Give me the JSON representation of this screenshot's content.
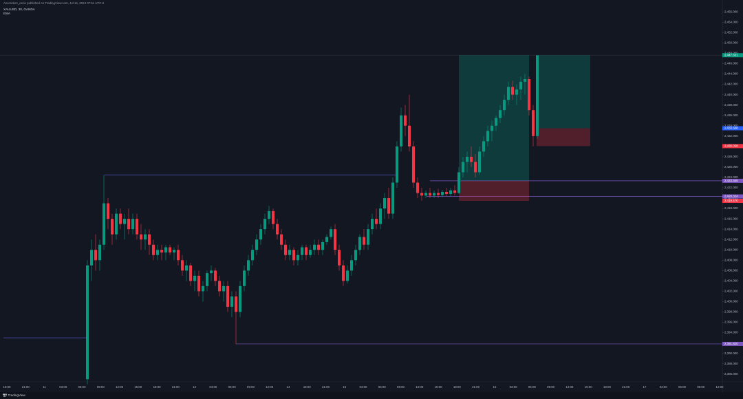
{
  "header": {
    "source": "Ascenders_eerie published on TradingView.com, Jul 16, 2024 07:51 UTC-6",
    "symbol": "XAUUSD, 30, OANDA",
    "indicator": "EMA"
  },
  "footer": {
    "brand": "TradingView"
  },
  "chart_data": {
    "type": "candlestick",
    "up_color": "#089981",
    "down_color": "#f23645",
    "ylim": [
      2384.5,
      2458.3
    ],
    "yticks": [
      {
        "value": 2386,
        "label": "2,386.000"
      },
      {
        "value": 2388,
        "label": "2,388.000"
      },
      {
        "value": 2390,
        "label": "2,390.000"
      },
      {
        "value": 2392,
        "label": "2,392.000"
      },
      {
        "value": 2394,
        "label": "2,394.000"
      },
      {
        "value": 2396,
        "label": "2,396.000"
      },
      {
        "value": 2398,
        "label": "2,398.000"
      },
      {
        "value": 2400,
        "label": "2,400.000"
      },
      {
        "value": 2402,
        "label": "2,402.000"
      },
      {
        "value": 2404,
        "label": "2,404.000"
      },
      {
        "value": 2406,
        "label": "2,406.000"
      },
      {
        "value": 2408,
        "label": "2,408.000"
      },
      {
        "value": 2410,
        "label": "2,410.000"
      },
      {
        "value": 2412,
        "label": "2,412.000"
      },
      {
        "value": 2414,
        "label": "2,414.000"
      },
      {
        "value": 2416,
        "label": "2,416.000"
      },
      {
        "value": 2418,
        "label": "2,418.000"
      },
      {
        "value": 2420,
        "label": "2,420.000"
      },
      {
        "value": 2422,
        "label": "2,422.000"
      },
      {
        "value": 2424,
        "label": "2,424.000"
      },
      {
        "value": 2426,
        "label": "2,426.000"
      },
      {
        "value": 2428,
        "label": "2,428.000"
      },
      {
        "value": 2430,
        "label": "2,430.000"
      },
      {
        "value": 2432,
        "label": "2,432.000"
      },
      {
        "value": 2434,
        "label": "2,434.000"
      },
      {
        "value": 2436,
        "label": "2,436.000"
      },
      {
        "value": 2438,
        "label": "2,438.000"
      },
      {
        "value": 2440,
        "label": "2,440.000"
      },
      {
        "value": 2442,
        "label": "2,442.000"
      },
      {
        "value": 2444,
        "label": "2,444.000"
      },
      {
        "value": 2446,
        "label": "2,446.000"
      },
      {
        "value": 2448,
        "label": "2,448.000"
      },
      {
        "value": 2450,
        "label": "2,450.000"
      },
      {
        "value": 2452,
        "label": "2,452.000"
      },
      {
        "value": 2454,
        "label": "2,454.000"
      },
      {
        "value": 2456,
        "label": "2,456.000"
      }
    ],
    "time_labels": [
      "18:00",
      "21:00",
      "11",
      "03:00",
      "06:00",
      "09:00",
      "12:00",
      "15:00",
      "18:00",
      "21:00",
      "12",
      "03:00",
      "06:00",
      "09:00",
      "12:00",
      "14",
      "18:00",
      "21:00",
      "15",
      "03:00",
      "06:00",
      "09:00",
      "12:00",
      "15:00",
      "18:00",
      "21:00",
      "16",
      "03:00",
      "06:00",
      "09:00",
      "12:00",
      "15:00",
      "18:00",
      "21:00",
      "17",
      "03:00",
      "06:00",
      "09:00",
      "12:00"
    ],
    "price_tags": [
      {
        "value": 2447.631,
        "label": "2,447.631",
        "color": "#089981"
      },
      {
        "value": 2433.508,
        "label": "2,433.508",
        "color": "#2962ff"
      },
      {
        "value": 2430.058,
        "label": "2,430.058",
        "color": "#f23645"
      },
      {
        "value": 2423.345,
        "label": "2,423.345",
        "color": "#7e57c2"
      },
      {
        "value": 2420.324,
        "label": "2,420.324",
        "color": "#7e57c2"
      },
      {
        "value": 2419.47,
        "label": "2,419.470",
        "color": "#f23645"
      },
      {
        "value": 2391.82,
        "label": "2,391.820",
        "color": "#7e57c2"
      }
    ],
    "levels": [
      2424.5,
      2423.345,
      2420.324,
      2391.82,
      2393.0,
      2447.631
    ],
    "positions": [
      {
        "entry": 2423.345,
        "target": 2447.631,
        "stop": 2419.47
      },
      {
        "entry": 2433.508,
        "target": 2447.631,
        "stop": 2430.058
      }
    ],
    "ohlc": [
      [
        2385,
        2408,
        2384,
        2407
      ],
      [
        2407,
        2412,
        2404,
        2410
      ],
      [
        2410,
        2413,
        2406,
        2408
      ],
      [
        2408,
        2412,
        2406,
        2411
      ],
      [
        2411,
        2424.5,
        2410,
        2419
      ],
      [
        2419,
        2420,
        2414,
        2416
      ],
      [
        2416,
        2417,
        2411,
        2413
      ],
      [
        2413,
        2418,
        2412,
        2417
      ],
      [
        2417,
        2418,
        2414,
        2415
      ],
      [
        2415,
        2417,
        2412,
        2416
      ],
      [
        2416,
        2418,
        2413,
        2414
      ],
      [
        2414,
        2417,
        2413,
        2416
      ],
      [
        2416,
        2417,
        2412,
        2413
      ],
      [
        2413,
        2415,
        2410,
        2412
      ],
      [
        2412,
        2414,
        2410,
        2413
      ],
      [
        2413,
        2414,
        2409,
        2411
      ],
      [
        2411,
        2412,
        2408,
        2409
      ],
      [
        2409,
        2411,
        2408,
        2410
      ],
      [
        2410,
        2411,
        2408,
        2409.5
      ],
      [
        2409.5,
        2411,
        2408,
        2410.5
      ],
      [
        2410.5,
        2411,
        2409,
        2409.5
      ],
      [
        2409.5,
        2410.5,
        2408,
        2410
      ],
      [
        2410,
        2411,
        2407,
        2408
      ],
      [
        2408,
        2409,
        2405,
        2406
      ],
      [
        2406,
        2408,
        2404,
        2407
      ],
      [
        2407,
        2407.5,
        2403,
        2404
      ],
      [
        2404,
        2406,
        2402,
        2405
      ],
      [
        2405,
        2406,
        2401,
        2402
      ],
      [
        2402,
        2404,
        2400,
        2403
      ],
      [
        2403,
        2406,
        2402,
        2405.5
      ],
      [
        2405.5,
        2407,
        2404,
        2406
      ],
      [
        2406,
        2406.5,
        2403,
        2404
      ],
      [
        2404,
        2405,
        2401,
        2402
      ],
      [
        2402,
        2404,
        2400,
        2403
      ],
      [
        2403,
        2404,
        2398,
        2399
      ],
      [
        2399,
        2402,
        2397,
        2401
      ],
      [
        2401,
        2402,
        2391.8,
        2398
      ],
      [
        2398,
        2404,
        2397,
        2403
      ],
      [
        2403,
        2407,
        2402,
        2406
      ],
      [
        2406,
        2409,
        2405,
        2408
      ],
      [
        2408,
        2411,
        2407,
        2410
      ],
      [
        2410,
        2413,
        2409,
        2412
      ],
      [
        2412,
        2415,
        2411,
        2414
      ],
      [
        2414,
        2417,
        2413,
        2416
      ],
      [
        2416,
        2418.5,
        2415,
        2417.5
      ],
      [
        2417.5,
        2418,
        2414,
        2415
      ],
      [
        2415,
        2416,
        2412,
        2413
      ],
      [
        2413,
        2414,
        2410,
        2411
      ],
      [
        2411,
        2412,
        2408,
        2409
      ],
      [
        2409,
        2411,
        2408,
        2410
      ],
      [
        2410,
        2410.5,
        2407,
        2408
      ],
      [
        2408,
        2410,
        2407,
        2409
      ],
      [
        2409,
        2411,
        2408,
        2410.5
      ],
      [
        2410.5,
        2411,
        2408,
        2409
      ],
      [
        2409,
        2411,
        2408.5,
        2410
      ],
      [
        2410,
        2412,
        2409,
        2411
      ],
      [
        2411,
        2412,
        2409,
        2410
      ],
      [
        2410,
        2412,
        2409,
        2411.5
      ],
      [
        2411.5,
        2413,
        2411,
        2412.5
      ],
      [
        2412.5,
        2414.5,
        2412,
        2414
      ],
      [
        2414,
        2415,
        2409,
        2410
      ],
      [
        2410,
        2411,
        2406,
        2407
      ],
      [
        2407,
        2408,
        2403,
        2404
      ],
      [
        2404,
        2407,
        2403.5,
        2406
      ],
      [
        2406,
        2409,
        2405,
        2408
      ],
      [
        2408,
        2411,
        2407,
        2410
      ],
      [
        2410,
        2413,
        2409,
        2412.5
      ],
      [
        2412.5,
        2414,
        2410,
        2411
      ],
      [
        2411,
        2415,
        2410,
        2414
      ],
      [
        2414,
        2417,
        2413,
        2416
      ],
      [
        2416,
        2418,
        2414,
        2415
      ],
      [
        2415,
        2419,
        2414,
        2418
      ],
      [
        2418,
        2421,
        2416,
        2420
      ],
      [
        2420,
        2422,
        2416,
        2417
      ],
      [
        2417,
        2424,
        2416,
        2423
      ],
      [
        2423,
        2431,
        2422,
        2430
      ],
      [
        2430,
        2437.5,
        2429,
        2436
      ],
      [
        2436,
        2438,
        2432,
        2434
      ],
      [
        2434,
        2440,
        2429,
        2430
      ],
      [
        2430,
        2431,
        2422,
        2423
      ],
      [
        2423,
        2424,
        2420,
        2421
      ],
      [
        2421,
        2422,
        2419.5,
        2420.5
      ],
      [
        2420.5,
        2421.5,
        2420,
        2421
      ],
      [
        2421,
        2422,
        2420,
        2420.5
      ],
      [
        2420.5,
        2421.5,
        2420,
        2421
      ],
      [
        2421,
        2421.8,
        2420,
        2420.6
      ],
      [
        2420.6,
        2421.6,
        2420.2,
        2421.2
      ],
      [
        2421.2,
        2422,
        2420.4,
        2420.8
      ],
      [
        2420.8,
        2422,
        2420.3,
        2421.5
      ],
      [
        2421.5,
        2422.5,
        2420.5,
        2421
      ],
      [
        2421,
        2426,
        2420.8,
        2425
      ],
      [
        2425,
        2428,
        2424,
        2427
      ],
      [
        2427,
        2429,
        2425,
        2428
      ],
      [
        2428,
        2430,
        2426,
        2427
      ],
      [
        2427,
        2428.5,
        2424,
        2425
      ],
      [
        2425,
        2430,
        2424.5,
        2429
      ],
      [
        2429,
        2432,
        2428,
        2431
      ],
      [
        2431,
        2434,
        2430,
        2433
      ],
      [
        2433,
        2435,
        2431,
        2434
      ],
      [
        2434,
        2436,
        2433,
        2435.5
      ],
      [
        2435.5,
        2438,
        2434.5,
        2437
      ],
      [
        2437,
        2440,
        2436,
        2439
      ],
      [
        2439,
        2442.5,
        2438,
        2441.5
      ],
      [
        2441.5,
        2442.7,
        2439,
        2440
      ],
      [
        2440,
        2442,
        2438,
        2441
      ],
      [
        2441,
        2443.5,
        2439,
        2442.5
      ],
      [
        2442.5,
        2444,
        2440,
        2443
      ],
      [
        2443,
        2443.5,
        2436,
        2437
      ],
      [
        2437,
        2438,
        2430,
        2432
      ],
      [
        2432,
        2447.6,
        2431.5,
        2447.6
      ]
    ]
  }
}
